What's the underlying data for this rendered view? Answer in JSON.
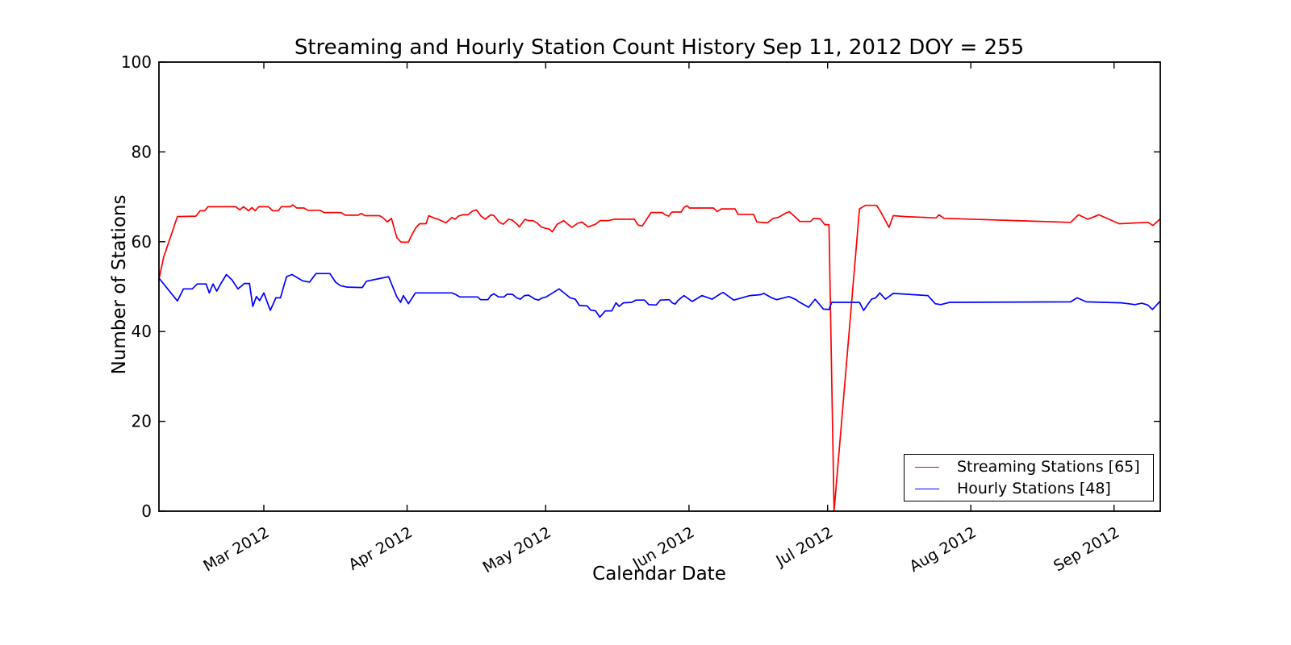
{
  "colors": {
    "streaming_line": "#ff0000",
    "hourly_line": "#0000ff",
    "axis": "#000000",
    "background": "#ffffff"
  },
  "chart_data": {
    "type": "line",
    "title": "Streaming and Hourly Station Count History Sep 11, 2012 DOY = 255",
    "xlabel": "Calendar Date",
    "ylabel": "Number of Stations",
    "ylim": [
      0,
      100
    ],
    "yticks": [
      0,
      20,
      40,
      60,
      80,
      100
    ],
    "ytick_labels": [
      "0",
      "20",
      "40",
      "60",
      "80",
      "100"
    ],
    "x_unit": "day of year 2012",
    "xlim_doy": [
      38.3,
      255
    ],
    "xticks": [
      {
        "doy": 61,
        "label": "Mar 2012"
      },
      {
        "doy": 92,
        "label": "Apr 2012"
      },
      {
        "doy": 122,
        "label": "May 2012"
      },
      {
        "doy": 153,
        "label": "Jun 2012"
      },
      {
        "doy": 183,
        "label": "Jul 2012"
      },
      {
        "doy": 214,
        "label": "Aug 2012"
      },
      {
        "doy": 245,
        "label": "Sep 2012"
      }
    ],
    "xtick_label_rotation_deg": 30,
    "grid": false,
    "tick_direction": "in",
    "legend": {
      "position": "lower right",
      "entries": [
        {
          "label": "Streaming Stations [65]",
          "color": "#ff0000"
        },
        {
          "label": "Hourly Stations [48]",
          "color": "#0000ff"
        }
      ]
    },
    "series": [
      {
        "name": "Streaming Stations [65]",
        "color": "#ff0000",
        "points": [
          [
            38.3,
            51.6
          ],
          [
            39.3,
            56.5
          ],
          [
            42.3,
            65.6
          ],
          [
            46.3,
            65.7
          ],
          [
            47.2,
            66.9
          ],
          [
            48.2,
            66.9
          ],
          [
            48.9,
            67.8
          ],
          [
            54.9,
            67.8
          ],
          [
            55.8,
            67.1
          ],
          [
            56.6,
            67.8
          ],
          [
            57.7,
            66.9
          ],
          [
            58.4,
            67.6
          ],
          [
            59.1,
            66.9
          ],
          [
            59.9,
            67.8
          ],
          [
            62.0,
            67.8
          ],
          [
            62.9,
            66.9
          ],
          [
            64.1,
            66.9
          ],
          [
            64.8,
            67.8
          ],
          [
            66.7,
            67.8
          ],
          [
            67.3,
            68.2
          ],
          [
            68.1,
            67.5
          ],
          [
            69.7,
            67.5
          ],
          [
            70.5,
            67.0
          ],
          [
            73.2,
            67.0
          ],
          [
            74.0,
            66.5
          ],
          [
            77.7,
            66.5
          ],
          [
            78.6,
            65.9
          ],
          [
            81.4,
            65.9
          ],
          [
            82.1,
            66.3
          ],
          [
            82.9,
            65.8
          ],
          [
            86.0,
            65.8
          ],
          [
            86.7,
            65.4
          ],
          [
            87.7,
            64.4
          ],
          [
            88.6,
            65.2
          ],
          [
            89.8,
            60.9
          ],
          [
            90.7,
            59.9
          ],
          [
            92.3,
            59.9
          ],
          [
            93.0,
            61.5
          ],
          [
            93.9,
            63.1
          ],
          [
            94.7,
            64.0
          ],
          [
            96.1,
            64.0
          ],
          [
            96.7,
            65.8
          ],
          [
            97.8,
            65.3
          ],
          [
            98.7,
            65.0
          ],
          [
            100.4,
            64.2
          ],
          [
            101.7,
            65.4
          ],
          [
            102.4,
            65.0
          ],
          [
            103.1,
            65.7
          ],
          [
            104.0,
            66.0
          ],
          [
            105.2,
            66.0
          ],
          [
            106.1,
            66.8
          ],
          [
            107.0,
            67.1
          ],
          [
            108.0,
            65.7
          ],
          [
            108.9,
            65.0
          ],
          [
            110.1,
            66.0
          ],
          [
            110.8,
            65.8
          ],
          [
            111.9,
            64.4
          ],
          [
            112.8,
            63.9
          ],
          [
            114.0,
            65.0
          ],
          [
            114.8,
            64.8
          ],
          [
            115.8,
            63.9
          ],
          [
            116.3,
            63.3
          ],
          [
            117.5,
            65.0
          ],
          [
            118.2,
            64.7
          ],
          [
            119.2,
            64.7
          ],
          [
            120.1,
            64.2
          ],
          [
            121.0,
            63.3
          ],
          [
            121.9,
            63.0
          ],
          [
            122.8,
            62.8
          ],
          [
            123.4,
            62.2
          ],
          [
            124.5,
            63.9
          ],
          [
            125.9,
            64.7
          ],
          [
            126.8,
            63.9
          ],
          [
            127.7,
            63.2
          ],
          [
            128.9,
            64.1
          ],
          [
            129.8,
            64.4
          ],
          [
            131.2,
            63.3
          ],
          [
            132.8,
            63.9
          ],
          [
            133.8,
            64.7
          ],
          [
            135.6,
            64.7
          ],
          [
            136.8,
            65.0
          ],
          [
            141.2,
            65.0
          ],
          [
            142.0,
            63.7
          ],
          [
            142.9,
            63.5
          ],
          [
            144.8,
            66.5
          ],
          [
            147.2,
            66.5
          ],
          [
            147.9,
            66.0
          ],
          [
            148.6,
            65.7
          ],
          [
            149.3,
            66.6
          ],
          [
            151.3,
            66.6
          ],
          [
            152.0,
            67.7
          ],
          [
            152.6,
            68.0
          ],
          [
            153.1,
            67.5
          ],
          [
            158.3,
            67.5
          ],
          [
            159.1,
            66.7
          ],
          [
            160.0,
            67.3
          ],
          [
            163.0,
            67.3
          ],
          [
            163.6,
            66.1
          ],
          [
            167.0,
            66.1
          ],
          [
            167.7,
            64.4
          ],
          [
            170.0,
            64.2
          ],
          [
            171.2,
            65.2
          ],
          [
            172.3,
            65.4
          ],
          [
            174.0,
            66.4
          ],
          [
            174.7,
            66.7
          ],
          [
            175.8,
            65.7
          ],
          [
            177.0,
            64.5
          ],
          [
            179.3,
            64.5
          ],
          [
            180.0,
            65.2
          ],
          [
            181.4,
            65.1
          ],
          [
            182.4,
            63.8
          ],
          [
            183.3,
            63.8
          ],
          [
            184.4,
            0.0
          ],
          [
            189.9,
            67.3
          ],
          [
            191.2,
            68.1
          ],
          [
            193.6,
            68.1
          ],
          [
            194.4,
            66.8
          ],
          [
            196.3,
            63.2
          ],
          [
            197.2,
            65.8
          ],
          [
            199.8,
            65.6
          ],
          [
            206.5,
            65.3
          ],
          [
            207.1,
            66.0
          ],
          [
            208.2,
            65.2
          ],
          [
            235.6,
            64.3
          ],
          [
            237.3,
            66.0
          ],
          [
            239.3,
            65.0
          ],
          [
            241.7,
            66.0
          ],
          [
            246.1,
            64.0
          ],
          [
            252.4,
            64.3
          ],
          [
            253.4,
            63.6
          ],
          [
            255.0,
            65.1
          ]
        ]
      },
      {
        "name": "Hourly Stations [48]",
        "color": "#0000ff",
        "points": [
          [
            38.3,
            51.9
          ],
          [
            42.3,
            46.8
          ],
          [
            43.6,
            49.5
          ],
          [
            45.5,
            49.5
          ],
          [
            46.6,
            50.6
          ],
          [
            48.5,
            50.6
          ],
          [
            49.2,
            48.6
          ],
          [
            50.0,
            50.6
          ],
          [
            50.8,
            49.0
          ],
          [
            51.6,
            50.5
          ],
          [
            52.9,
            52.7
          ],
          [
            54.1,
            51.5
          ],
          [
            55.4,
            49.5
          ],
          [
            56.8,
            50.7
          ],
          [
            57.9,
            50.7
          ],
          [
            58.6,
            45.6
          ],
          [
            59.4,
            47.8
          ],
          [
            60.1,
            46.9
          ],
          [
            61.0,
            48.6
          ],
          [
            62.4,
            44.7
          ],
          [
            63.6,
            47.5
          ],
          [
            64.6,
            47.5
          ],
          [
            65.9,
            52.2
          ],
          [
            67.1,
            52.7
          ],
          [
            69.4,
            51.3
          ],
          [
            70.9,
            51.0
          ],
          [
            72.3,
            52.9
          ],
          [
            75.3,
            52.9
          ],
          [
            76.5,
            51.0
          ],
          [
            77.6,
            50.2
          ],
          [
            79.0,
            49.9
          ],
          [
            82.3,
            49.8
          ],
          [
            83.2,
            51.2
          ],
          [
            86.0,
            51.8
          ],
          [
            88.0,
            52.2
          ],
          [
            89.8,
            47.7
          ],
          [
            90.6,
            46.5
          ],
          [
            91.2,
            48.0
          ],
          [
            92.3,
            46.2
          ],
          [
            93.8,
            48.6
          ],
          [
            101.7,
            48.6
          ],
          [
            102.6,
            48.2
          ],
          [
            103.4,
            47.7
          ],
          [
            107.3,
            47.7
          ],
          [
            107.9,
            47.1
          ],
          [
            109.5,
            47.1
          ],
          [
            110.1,
            48.0
          ],
          [
            110.8,
            48.4
          ],
          [
            111.8,
            47.7
          ],
          [
            113.0,
            47.7
          ],
          [
            113.6,
            48.3
          ],
          [
            114.8,
            48.3
          ],
          [
            115.7,
            47.5
          ],
          [
            116.5,
            47.2
          ],
          [
            117.4,
            48.0
          ],
          [
            118.3,
            48.1
          ],
          [
            119.7,
            47.2
          ],
          [
            120.4,
            47.0
          ],
          [
            121.3,
            47.5
          ],
          [
            122.1,
            47.7
          ],
          [
            124.9,
            49.5
          ],
          [
            126.1,
            48.5
          ],
          [
            127.3,
            47.5
          ],
          [
            128.4,
            47.2
          ],
          [
            129.3,
            45.8
          ],
          [
            131.0,
            45.7
          ],
          [
            131.7,
            44.8
          ],
          [
            132.8,
            44.6
          ],
          [
            133.7,
            43.2
          ],
          [
            134.9,
            44.6
          ],
          [
            136.3,
            44.6
          ],
          [
            137.2,
            46.4
          ],
          [
            137.9,
            45.6
          ],
          [
            138.8,
            46.4
          ],
          [
            140.6,
            46.5
          ],
          [
            141.5,
            47.0
          ],
          [
            143.4,
            47.0
          ],
          [
            144.3,
            46.0
          ],
          [
            145.9,
            45.9
          ],
          [
            146.8,
            47.0
          ],
          [
            148.7,
            47.1
          ],
          [
            149.4,
            46.4
          ],
          [
            150.0,
            46.1
          ],
          [
            150.6,
            46.9
          ],
          [
            151.9,
            48.0
          ],
          [
            153.7,
            46.7
          ],
          [
            155.8,
            48.0
          ],
          [
            158.0,
            47.2
          ],
          [
            159.8,
            48.4
          ],
          [
            160.4,
            48.7
          ],
          [
            162.7,
            47.0
          ],
          [
            166.2,
            48.0
          ],
          [
            168.5,
            48.2
          ],
          [
            169.2,
            48.5
          ],
          [
            170.9,
            47.5
          ],
          [
            172.0,
            47.1
          ],
          [
            174.6,
            47.8
          ],
          [
            176.2,
            47.1
          ],
          [
            176.8,
            46.6
          ],
          [
            178.9,
            45.4
          ],
          [
            180.3,
            47.2
          ],
          [
            182.1,
            45.0
          ],
          [
            183.3,
            44.9
          ],
          [
            183.9,
            46.5
          ],
          [
            189.9,
            46.5
          ],
          [
            190.8,
            44.7
          ],
          [
            192.5,
            47.2
          ],
          [
            193.4,
            47.5
          ],
          [
            194.3,
            48.6
          ],
          [
            195.5,
            47.2
          ],
          [
            197.2,
            48.5
          ],
          [
            204.7,
            48.0
          ],
          [
            206.3,
            46.2
          ],
          [
            207.5,
            46.0
          ],
          [
            209.4,
            46.5
          ],
          [
            235.6,
            46.6
          ],
          [
            237.0,
            47.5
          ],
          [
            239.0,
            46.6
          ],
          [
            246.6,
            46.4
          ],
          [
            249.5,
            46.0
          ],
          [
            251.0,
            46.3
          ],
          [
            252.3,
            45.9
          ],
          [
            253.3,
            44.9
          ],
          [
            255.0,
            46.8
          ]
        ]
      }
    ]
  }
}
